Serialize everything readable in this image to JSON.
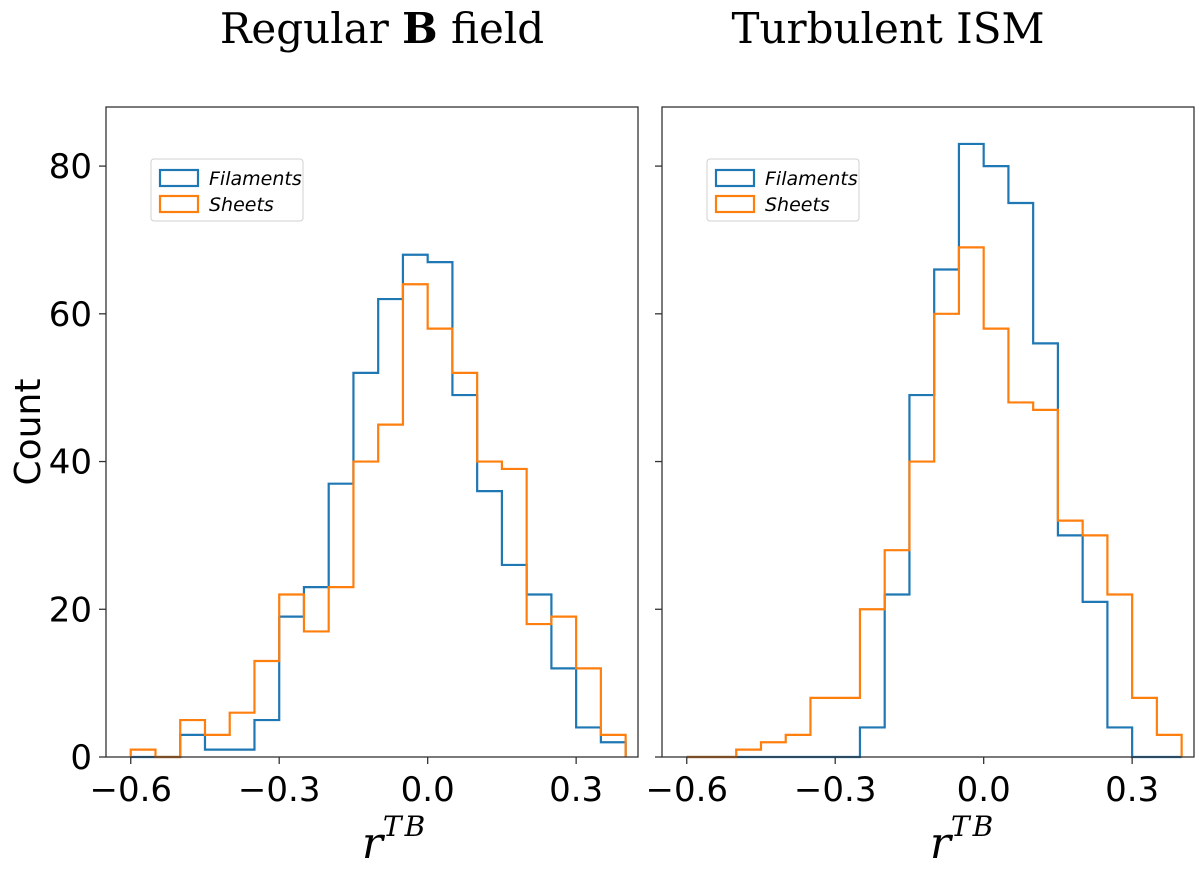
{
  "figure": {
    "ylabel": "Count",
    "colors": {
      "filaments": "#1f77b4",
      "sheets": "#ff7f0e",
      "axis": "#333333"
    }
  },
  "chart_data": [
    {
      "type": "histogram",
      "title": "Regular",
      "title_bold": "B",
      "title_suffix": "field",
      "xlabel_base": "r",
      "xlabel_sup": "TB",
      "ylabel": "Count",
      "xlim": [
        -0.65,
        0.425
      ],
      "ylim": [
        0,
        88
      ],
      "xticks": [
        -0.6,
        -0.3,
        0.0,
        0.3
      ],
      "xtick_labels": [
        "−0.6",
        "−0.3",
        "0.0",
        "0.3"
      ],
      "yticks": [
        0,
        20,
        40,
        60,
        80
      ],
      "ytick_labels": [
        "0",
        "20",
        "40",
        "60",
        "80"
      ],
      "bin_edges": [
        -0.6,
        -0.55,
        -0.5,
        -0.45,
        -0.4,
        -0.35,
        -0.3,
        -0.25,
        -0.2,
        -0.15,
        -0.1,
        -0.05,
        0.0,
        0.05,
        0.1,
        0.15,
        0.2,
        0.25,
        0.3,
        0.35,
        0.4
      ],
      "series": [
        {
          "name": "Filaments",
          "color": "#1f77b4",
          "values": [
            0,
            0,
            3,
            1,
            1,
            5,
            19,
            23,
            37,
            52,
            62,
            68,
            67,
            49,
            36,
            26,
            22,
            12,
            4,
            2
          ]
        },
        {
          "name": "Sheets",
          "color": "#ff7f0e",
          "values": [
            1,
            0,
            5,
            3,
            6,
            13,
            22,
            17,
            23,
            40,
            45,
            64,
            58,
            52,
            40,
            39,
            18,
            19,
            12,
            3
          ]
        }
      ],
      "legend": [
        "Filaments",
        "Sheets"
      ],
      "legend_position": "upper-left"
    },
    {
      "type": "histogram",
      "title": "Turbulent ISM",
      "title_bold": "",
      "title_suffix": "",
      "xlabel_base": "r",
      "xlabel_sup": "TB",
      "ylabel": "",
      "xlim": [
        -0.65,
        0.425
      ],
      "ylim": [
        0,
        88
      ],
      "xticks": [
        -0.6,
        -0.3,
        0.0,
        0.3
      ],
      "xtick_labels": [
        "−0.6",
        "−0.3",
        "0.0",
        "0.3"
      ],
      "yticks": [
        0,
        20,
        40,
        60,
        80
      ],
      "ytick_labels": [],
      "bin_edges": [
        -0.6,
        -0.55,
        -0.5,
        -0.45,
        -0.4,
        -0.35,
        -0.3,
        -0.25,
        -0.2,
        -0.15,
        -0.1,
        -0.05,
        0.0,
        0.05,
        0.1,
        0.15,
        0.2,
        0.25,
        0.3,
        0.35,
        0.4
      ],
      "series": [
        {
          "name": "Filaments",
          "color": "#1f77b4",
          "values": [
            0,
            0,
            0,
            0,
            0,
            0,
            0,
            4,
            22,
            49,
            66,
            83,
            80,
            75,
            56,
            30,
            21,
            4,
            0,
            0
          ]
        },
        {
          "name": "Sheets",
          "color": "#ff7f0e",
          "values": [
            0,
            0,
            1,
            2,
            3,
            8,
            8,
            20,
            28,
            40,
            60,
            69,
            58,
            48,
            47,
            32,
            30,
            22,
            8,
            3
          ]
        }
      ],
      "legend": [
        "Filaments",
        "Sheets"
      ],
      "legend_position": "upper-left"
    }
  ]
}
